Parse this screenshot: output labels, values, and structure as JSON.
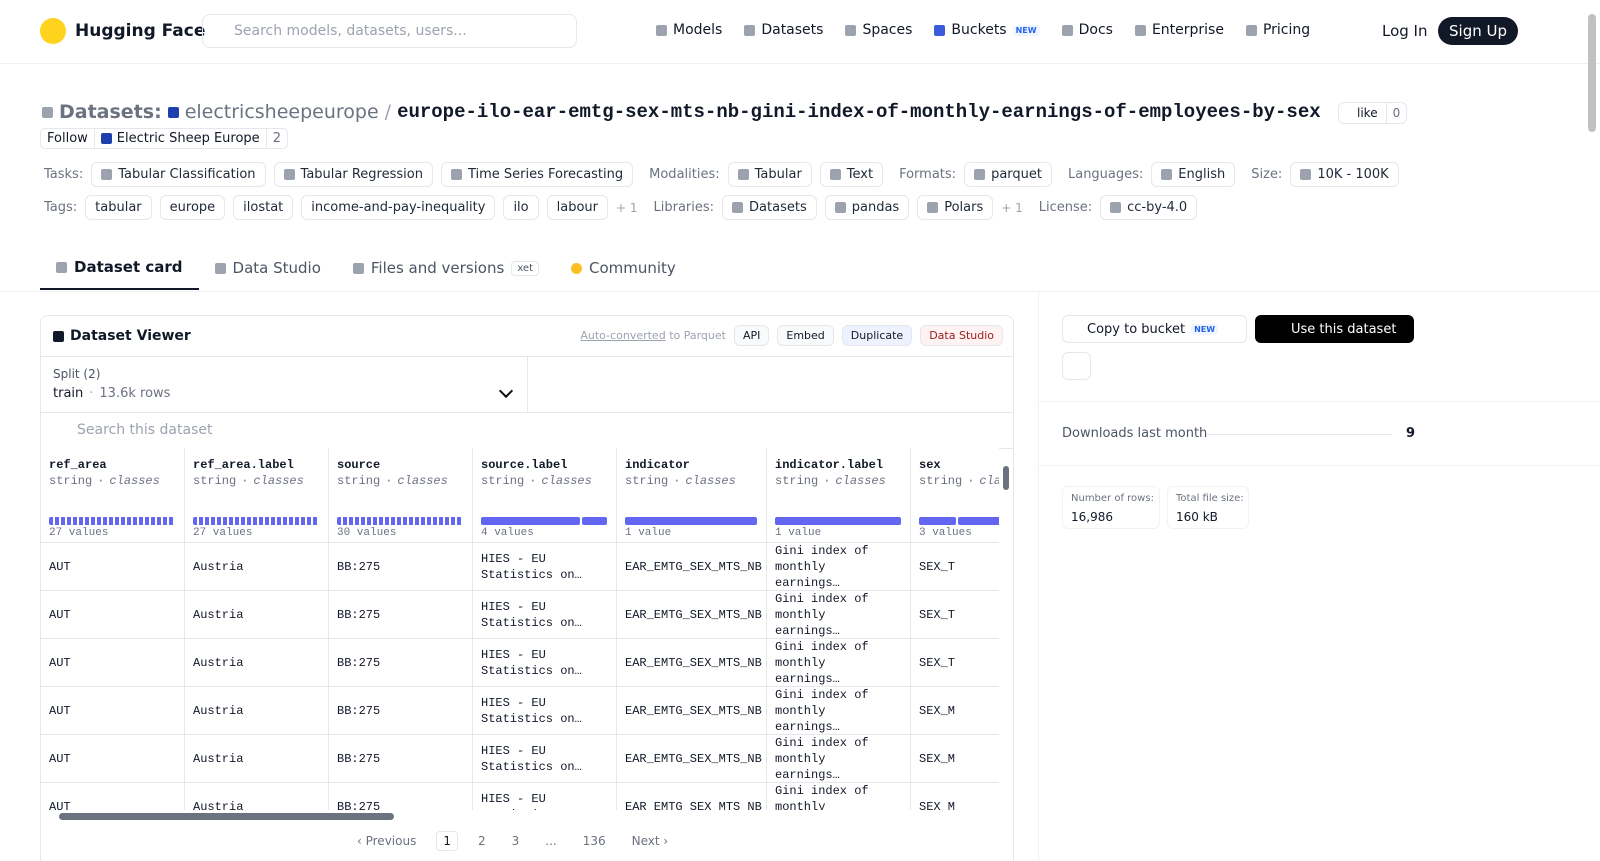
{
  "header": {
    "brand": "Hugging Face",
    "search_placeholder": "Search models, datasets, users...",
    "nav": [
      "Models",
      "Datasets",
      "Spaces",
      "Buckets",
      "Docs",
      "Enterprise",
      "Pricing"
    ],
    "nav_badge": "NEW",
    "login": "Log In",
    "signup": "Sign Up"
  },
  "repo": {
    "kind": "Datasets:",
    "owner": "electricsheepeurope",
    "separator": "/",
    "name": "europe-ilo-ear-emtg-sex-mts-nb-gini-index-of-monthly-earnings-of-employees-by-sex",
    "like": "like",
    "likes": 0,
    "follow": "Follow",
    "org": "Electric Sheep Europe",
    "followers": 2
  },
  "meta_rows": [
    [
      {
        "label": "Tasks:",
        "items": [
          "Tabular Classification",
          "Tabular Regression",
          "Time Series Forecasting"
        ]
      },
      {
        "label": "Modalities:",
        "items": [
          "Tabular",
          "Text"
        ]
      },
      {
        "label": "Formats:",
        "items": [
          "parquet"
        ]
      },
      {
        "label": "Languages:",
        "items": [
          "English"
        ]
      },
      {
        "label": "Size:",
        "items": [
          "10K - 100K"
        ]
      }
    ],
    [
      {
        "label": "Tags:",
        "items": [
          "tabular",
          "europe",
          "ilostat",
          "income-and-pay-inequality",
          "ilo",
          "labour"
        ],
        "more": "+ 1"
      },
      {
        "label": "Libraries:",
        "items": [
          "Datasets",
          "pandas",
          "Polars"
        ],
        "more": "+ 1"
      },
      {
        "label": "License:",
        "items": [
          "cc-by-4.0"
        ]
      }
    ]
  ],
  "tabs": [
    "Dataset card",
    "Data Studio",
    "Files and versions",
    "Community"
  ],
  "xet_badge": "xet",
  "viewer": {
    "title": "Dataset Viewer",
    "auto": "Auto-converted",
    "to_parquet": "to Parquet",
    "buttons": [
      "API",
      "Embed",
      "Duplicate",
      "Data Studio"
    ],
    "split_label": "Split (2)",
    "split": "train",
    "split_sep": "·",
    "split_rows": "13.6k rows",
    "search": "Search this dataset",
    "type_sep": "·",
    "columns": [
      {
        "name": "ref_area",
        "type": "string",
        "kind": "classes",
        "count": "27 values"
      },
      {
        "name": "ref_area.label",
        "type": "string",
        "kind": "classes",
        "count": "27 values"
      },
      {
        "name": "source",
        "type": "string",
        "kind": "classes",
        "count": "30 values"
      },
      {
        "name": "source.label",
        "type": "string",
        "kind": "classes",
        "count": "4 values"
      },
      {
        "name": "indicator",
        "type": "string",
        "kind": "classes",
        "count": "1 value"
      },
      {
        "name": "indicator.label",
        "type": "string",
        "kind": "classes",
        "count": "1 value"
      },
      {
        "name": "sex",
        "type": "string",
        "kind": "classes",
        "count": "3 values"
      }
    ],
    "rows": [
      [
        "AUT",
        "Austria",
        "BB:275",
        "HIES - EU Statistics on…",
        "EAR_EMTG_SEX_MTS_NB",
        "Gini index of monthly earnings…",
        "SEX_T"
      ],
      [
        "AUT",
        "Austria",
        "BB:275",
        "HIES - EU Statistics on…",
        "EAR_EMTG_SEX_MTS_NB",
        "Gini index of monthly earnings…",
        "SEX_T"
      ],
      [
        "AUT",
        "Austria",
        "BB:275",
        "HIES - EU Statistics on…",
        "EAR_EMTG_SEX_MTS_NB",
        "Gini index of monthly earnings…",
        "SEX_T"
      ],
      [
        "AUT",
        "Austria",
        "BB:275",
        "HIES - EU Statistics on…",
        "EAR_EMTG_SEX_MTS_NB",
        "Gini index of monthly earnings…",
        "SEX_M"
      ],
      [
        "AUT",
        "Austria",
        "BB:275",
        "HIES - EU Statistics on…",
        "EAR_EMTG_SEX_MTS_NB",
        "Gini index of monthly earnings…",
        "SEX_M"
      ],
      [
        "AUT",
        "Austria",
        "BB:275",
        "HIES - EU Statistics on…",
        "EAR_EMTG_SEX_MTS_NB",
        "Gini index of monthly earnings…",
        "SEX_M"
      ]
    ],
    "pagination": [
      "‹ Previous",
      "1",
      "2",
      "3",
      "...",
      "136",
      "Next ›"
    ]
  },
  "sidebar": {
    "copy": "Copy to bucket",
    "copy_badge": "NEW",
    "use": "Use this dataset",
    "downloads_label": "Downloads last month",
    "downloads": 9,
    "rows_label": "Number of rows:",
    "rows": "16,986",
    "size_label": "Total file size:",
    "size": "160 kB"
  }
}
